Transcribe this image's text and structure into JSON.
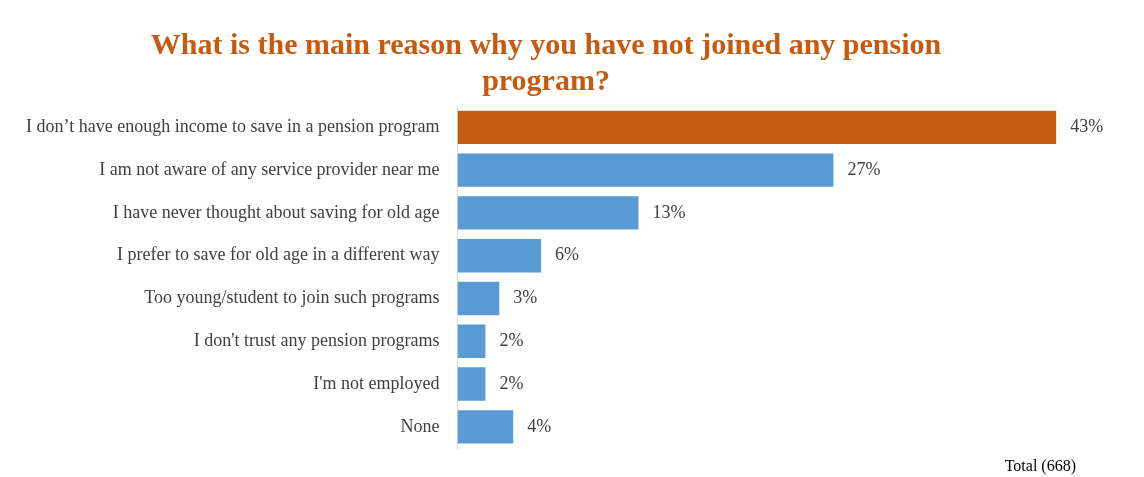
{
  "chart_data": {
    "type": "bar",
    "orientation": "horizontal",
    "title": "What is the main reason why you have not joined any pension program?",
    "categories": [
      "I don’t have enough income to save in a pension program",
      "I am not aware of any service provider near me",
      "I have never thought about saving for old age",
      "I prefer to save for old age in a different way",
      "Too young/student to join such programs",
      "I don't trust any pension programs",
      "I'm not employed",
      "None"
    ],
    "values": [
      43,
      27,
      13,
      6,
      3,
      2,
      2,
      4
    ],
    "colors": [
      "#c55a11",
      "#5b9bd5",
      "#5b9bd5",
      "#5b9bd5",
      "#5b9bd5",
      "#5b9bd5",
      "#5b9bd5",
      "#5b9bd5"
    ],
    "value_labels": [
      "43%",
      "27%",
      "13%",
      "6%",
      "3%",
      "2%",
      "2%",
      "4%"
    ],
    "grid": false,
    "legend": false,
    "annotations": [
      "Total (668)"
    ]
  }
}
